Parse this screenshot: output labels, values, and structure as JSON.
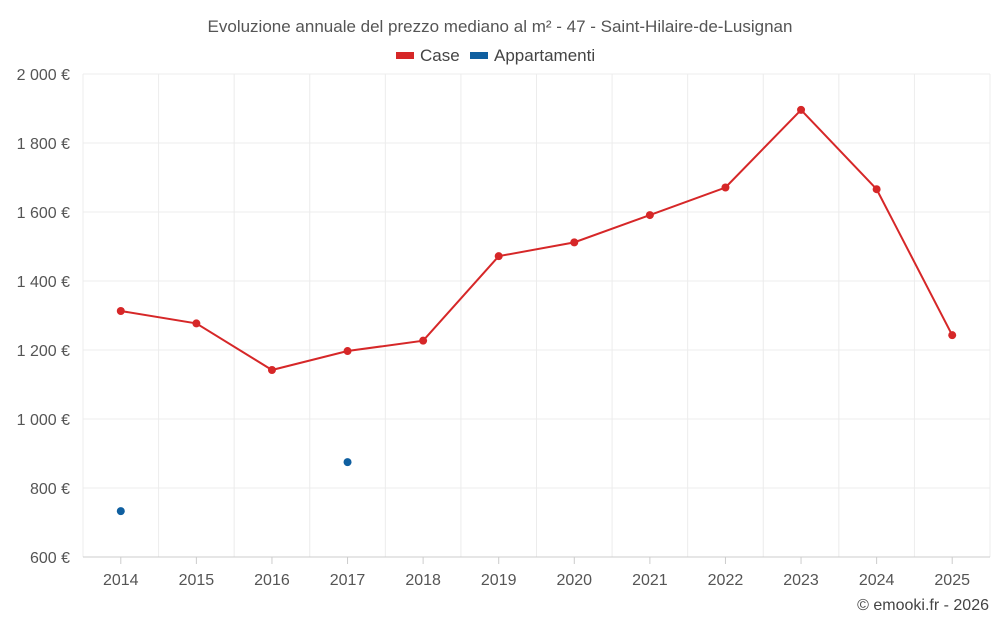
{
  "chart_data": {
    "type": "line",
    "title": "Evoluzione annuale del prezzo mediano al m² - 47 - Saint-Hilaire-de-Lusignan",
    "xlabel": "",
    "ylabel": "",
    "x": [
      "2014",
      "2015",
      "2016",
      "2017",
      "2018",
      "2019",
      "2020",
      "2021",
      "2022",
      "2023",
      "2024",
      "2025"
    ],
    "ylim": [
      600,
      2000
    ],
    "yticks": [
      600,
      800,
      1000,
      1200,
      1400,
      1600,
      1800,
      2000
    ],
    "ytick_labels": [
      "600 €",
      "800 €",
      "1 000 €",
      "1 200 €",
      "1 400 €",
      "1 600 €",
      "1 800 €",
      "2 000 €"
    ],
    "grid": true,
    "legend_position": "top-center",
    "series": [
      {
        "name": "Case",
        "color": "#d62728",
        "values": [
          1313,
          1277,
          1142,
          1197,
          1227,
          1472,
          1512,
          1591,
          1671,
          1896,
          1666,
          1243
        ]
      },
      {
        "name": "Appartamenti",
        "color": "#0f5fa0",
        "values": [
          733,
          null,
          null,
          875,
          null,
          null,
          null,
          null,
          null,
          null,
          null,
          null
        ]
      }
    ]
  },
  "footer": "© emooki.fr - 2026"
}
